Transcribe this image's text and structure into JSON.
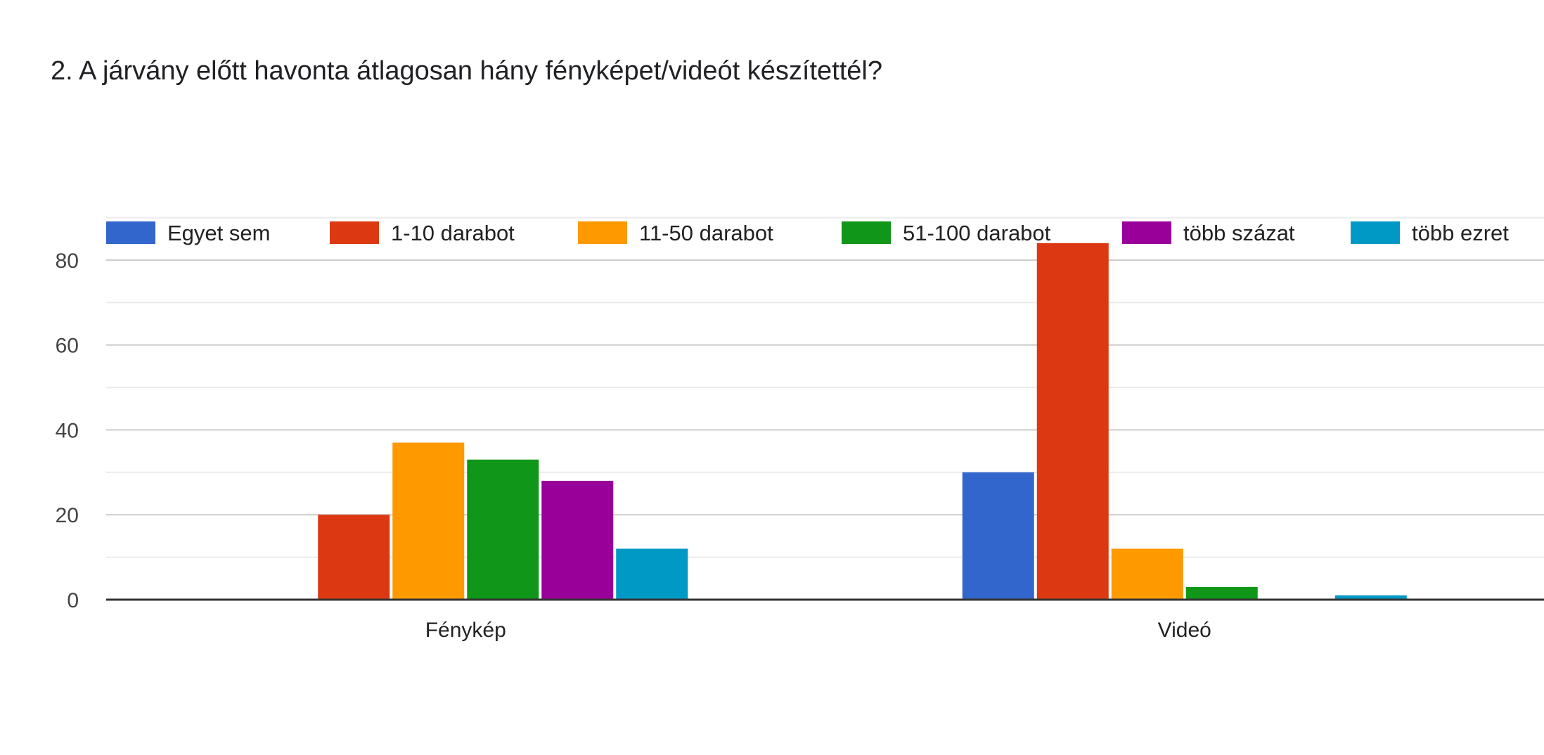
{
  "chart_data": {
    "type": "bar",
    "title": "2. A járvány előtt havonta átlagosan hány fényképet/videót készítettél?",
    "xlabel": "",
    "ylabel": "",
    "categories": [
      "Fénykép",
      "Videó"
    ],
    "ylim": [
      0,
      90
    ],
    "yticks": [
      0,
      20,
      40,
      60,
      80
    ],
    "grid": true,
    "legend": "top",
    "series": [
      {
        "name": "Egyet sem",
        "color": "#3366cc",
        "values": [
          0,
          30
        ]
      },
      {
        "name": "1-10 darabot",
        "color": "#dc3912",
        "values": [
          20,
          84
        ]
      },
      {
        "name": "11-50 darabot",
        "color": "#ff9900",
        "values": [
          37,
          12
        ]
      },
      {
        "name": "51-100 darabot",
        "color": "#109618",
        "values": [
          33,
          3
        ]
      },
      {
        "name": "több százat",
        "color": "#990099",
        "values": [
          28,
          0
        ]
      },
      {
        "name": "több ezret",
        "color": "#0099c6",
        "values": [
          12,
          1
        ]
      }
    ]
  }
}
